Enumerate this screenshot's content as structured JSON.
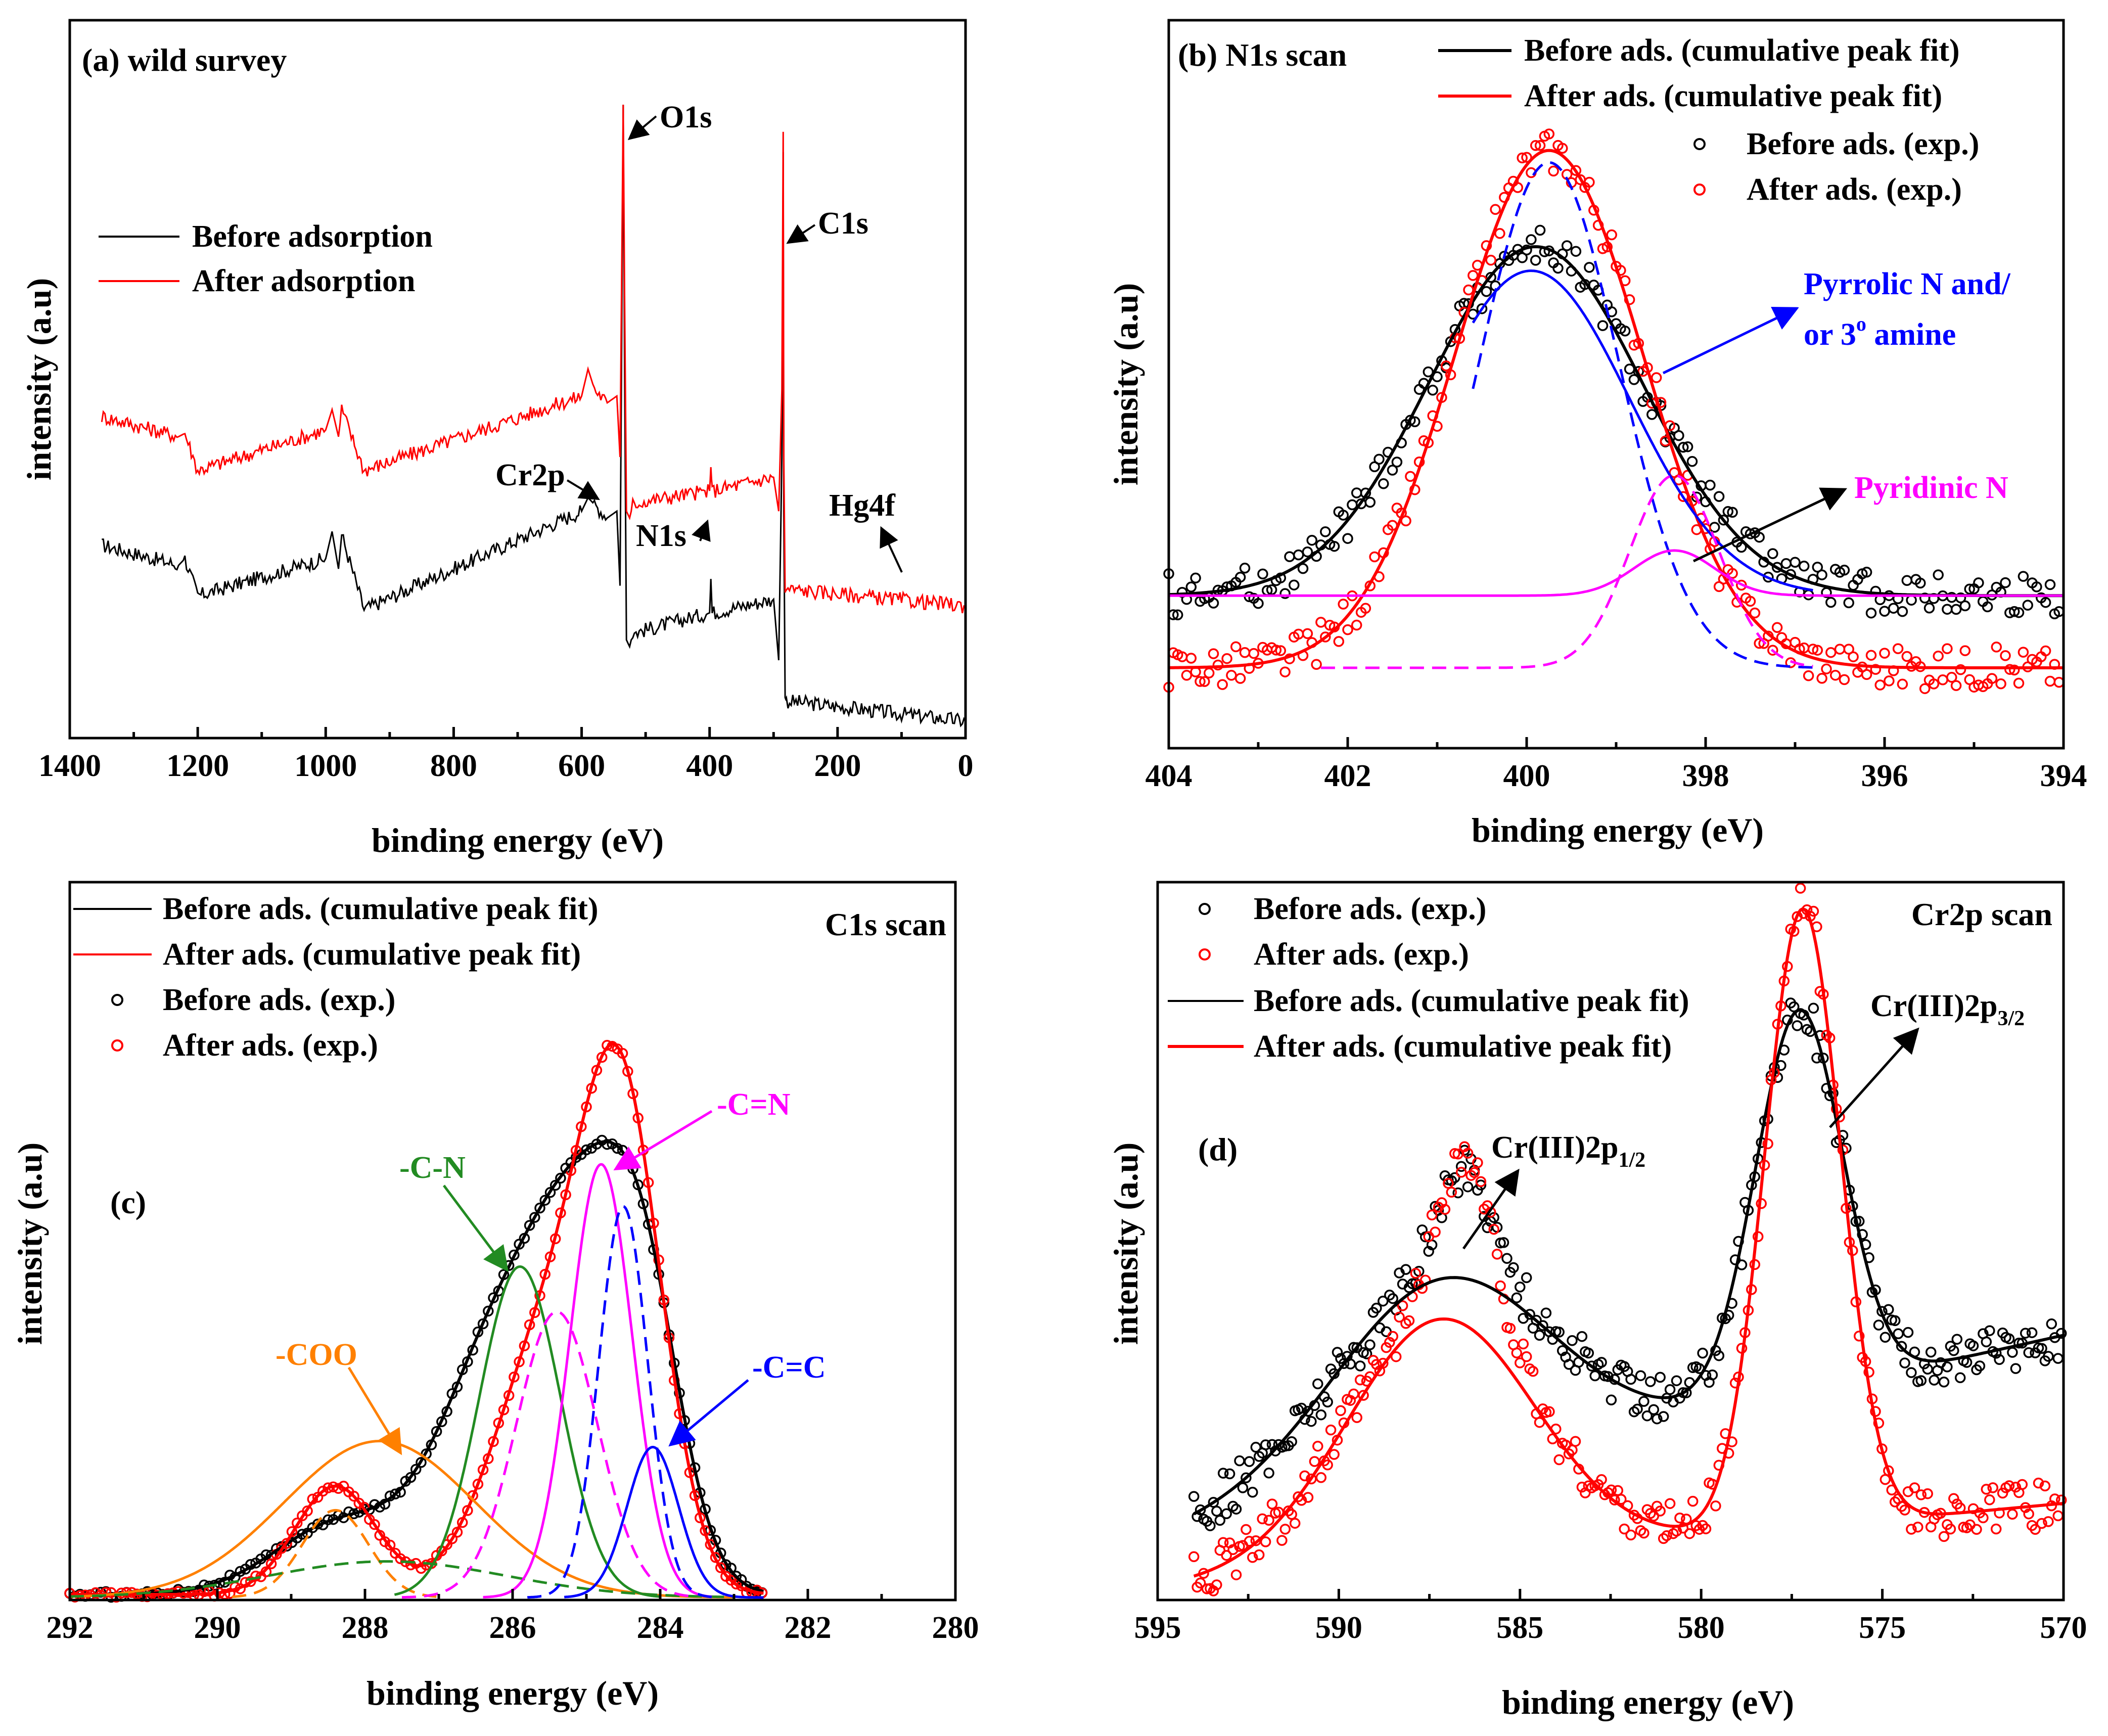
{
  "chart_data": [
    {
      "type": "line",
      "panel": "a",
      "title": "(a) wild survey",
      "xlabel": "binding energy (eV)",
      "ylabel": "intensity (a.u)",
      "xlim": [
        1400,
        0
      ],
      "xticks": [
        1400,
        1200,
        1000,
        800,
        600,
        400,
        200,
        0
      ],
      "ylim": [
        0,
        10
      ],
      "legend": [
        {
          "label": "Before adsorption",
          "color": "#000000"
        },
        {
          "label": "After adsorption",
          "color": "#ff0000"
        }
      ],
      "series": [
        {
          "name": "Before adsorption",
          "color": "#000000",
          "noise": 0.22,
          "x": [
            1350,
            1230,
            1220,
            1200,
            1000,
            990,
            980,
            975,
            940,
            600,
            590,
            580,
            560,
            545,
            540,
            535,
            533,
            530,
            525,
            520,
            500,
            400,
            398,
            396,
            300,
            292,
            287,
            285,
            284,
            282,
            280,
            0
          ],
          "y": [
            2.7,
            2.4,
            2.5,
            1.95,
            2.5,
            2.9,
            2.35,
            2.85,
            1.75,
            3.2,
            3.4,
            3.3,
            3.1,
            3.2,
            2.1,
            9.2,
            5.5,
            1.3,
            1.2,
            1.4,
            1.45,
            1.7,
            2.2,
            1.7,
            1.9,
            1.0,
            4.0,
            8.5,
            3.2,
            0.45,
            0.4,
            0.1
          ]
        },
        {
          "name": "After adsorption",
          "color": "#ff0000",
          "noise": 0.22,
          "x": [
            1350,
            1230,
            1220,
            1200,
            1000,
            990,
            980,
            975,
            940,
            600,
            590,
            580,
            560,
            545,
            540,
            535,
            533,
            530,
            525,
            520,
            500,
            400,
            398,
            396,
            300,
            292,
            287,
            285,
            284,
            282,
            280,
            0
          ],
          "y": [
            4.6,
            4.3,
            4.35,
            3.8,
            4.4,
            4.7,
            4.3,
            4.7,
            3.8,
            4.9,
            5.3,
            5.0,
            4.8,
            4.9,
            4.0,
            9.2,
            6.5,
            3.2,
            3.1,
            3.3,
            3.35,
            3.5,
            3.85,
            3.5,
            3.7,
            3.2,
            5.0,
            8.8,
            4.0,
            2.0,
            2.05,
            1.8
          ]
        }
      ],
      "annotations": [
        "O1s",
        "C1s",
        "Cr2p",
        "N1s",
        "Hg4f"
      ]
    },
    {
      "type": "line",
      "panel": "b",
      "title": "(b) N1s scan",
      "xlabel": "binding energy (eV)",
      "ylabel": "intensity (a.u)",
      "xlim": [
        404,
        394
      ],
      "xticks": [
        404,
        402,
        400,
        398,
        396,
        394
      ],
      "ylim": [
        0,
        10
      ],
      "legend": [
        {
          "label": "Before ads. (cumulative peak fit)",
          "style": "line",
          "color": "#000000"
        },
        {
          "label": "After ads. (cumulative peak fit)",
          "style": "line",
          "color": "#ff0000"
        },
        {
          "label": "Before ads. (exp.)",
          "style": "circle",
          "color": "#000000"
        },
        {
          "label": "After ads. (exp.)",
          "style": "circle",
          "color": "#ff0000"
        }
      ],
      "series": [
        {
          "name": "Before ads. (cumulative peak fit)",
          "style": "solid",
          "color": "#000000",
          "baseline": 2.2,
          "peaks": [
            [
              399.9,
              5.8,
              1.2
            ]
          ]
        },
        {
          "name": "After ads. (cumulative peak fit)",
          "style": "solid",
          "color": "#ff0000",
          "baseline": 1.0,
          "peaks": [
            [
              399.75,
              8.6,
              1.05
            ]
          ]
        },
        {
          "name": "Pyrrolic N component (before)",
          "style": "solid",
          "color": "#0000ff",
          "baseline": 2.2,
          "peaks": [
            [
              399.95,
              5.4,
              1.1
            ]
          ],
          "xrange": [
            400.6,
            396.8
          ]
        },
        {
          "name": "Pyrrolic N component (after)",
          "style": "dashed",
          "color": "#0000ff",
          "baseline": 1.0,
          "peaks": [
            [
              399.75,
              8.4,
              0.78
            ]
          ],
          "xrange": [
            400.6,
            396.8
          ]
        },
        {
          "name": "Pyridinic N component (before)",
          "style": "solid",
          "color": "#ff00ff",
          "baseline": 2.2,
          "peaks": [
            [
              398.35,
              0.75,
              0.45
            ]
          ],
          "xrange": [
            404,
            394
          ]
        },
        {
          "name": "Pyridinic N component (after)",
          "style": "dashed",
          "color": "#ff00ff",
          "baseline": 1.0,
          "peaks": [
            [
              398.35,
              3.2,
              0.5
            ]
          ],
          "xrange": [
            402.3,
            396.8
          ]
        },
        {
          "name": "Before ads. (exp.)",
          "style": "points",
          "color": "#000000",
          "of": 0,
          "noise": 0.35,
          "step": 0.05
        },
        {
          "name": "After ads. (exp.)",
          "style": "points",
          "color": "#ff0000",
          "of": 1,
          "noise": 0.35,
          "step": 0.05
        }
      ],
      "annotations": [
        "Pyrrolic N and/",
        "or 3",
        "o",
        " amine",
        "Pyridinic N"
      ]
    },
    {
      "type": "line",
      "panel": "c",
      "title": "C1s scan",
      "xlabel": "binding energy (eV)",
      "ylabel": "intensity (a.u)",
      "xlim": [
        292,
        280
      ],
      "xticks": [
        292,
        290,
        288,
        286,
        284,
        282,
        280
      ],
      "ylim": [
        0,
        10
      ],
      "legend": [
        {
          "label": "Before ads. (cumulative peak fit)",
          "style": "line",
          "color": "#000000"
        },
        {
          "label": "After ads. (cumulative peak fit)",
          "style": "line",
          "color": "#ff0000"
        },
        {
          "label": "Before ads. (exp.)",
          "style": "circle",
          "color": "#000000"
        },
        {
          "label": "After ads. (exp.)",
          "style": "circle",
          "color": "#ff0000"
        }
      ],
      "series": [
        {
          "name": "Before ads. (cumulative peak fit)",
          "style": "solid",
          "color": "#000000",
          "baseline": 0.05,
          "peaks": [
            [
              288.3,
              1.2,
              0.9
            ],
            [
              286.3,
              3.4,
              0.75
            ],
            [
              285.0,
              5.8,
              0.75
            ],
            [
              284.2,
              3.0,
              0.5
            ]
          ],
          "xrange": [
            292,
            282.6
          ]
        },
        {
          "name": "After ads. (cumulative peak fit)",
          "style": "solid",
          "color": "#ff0000",
          "baseline": 0.05,
          "peaks": [
            [
              288.4,
              1.8,
              0.55
            ],
            [
              285.5,
              4.2,
              0.75
            ],
            [
              284.5,
              7.2,
              0.55
            ]
          ],
          "xrange": [
            292,
            282.6
          ]
        },
        {
          "name": "-COO (before)",
          "style": "solid",
          "color": "#ff8000",
          "baseline": 0.0,
          "peaks": [
            [
              287.8,
              2.6,
              1.3
            ]
          ],
          "xrange": [
            292,
            283
          ]
        },
        {
          "name": "-COO (after)",
          "style": "dashed",
          "color": "#ff8000",
          "baseline": 0.0,
          "peaks": [
            [
              288.4,
              1.45,
              0.45
            ]
          ],
          "xrange": [
            289.8,
            287.0
          ]
        },
        {
          "name": "broad (after)",
          "style": "dashed",
          "color": "#228b22",
          "baseline": 0.0,
          "peaks": [
            [
              287.7,
              0.6,
              1.6
            ]
          ],
          "xrange": [
            292,
            283
          ]
        },
        {
          "name": "-C-N (before)",
          "style": "solid",
          "color": "#228b22",
          "baseline": 0.0,
          "peaks": [
            [
              285.9,
              5.5,
              0.55
            ]
          ],
          "xrange": [
            287.6,
            284.0
          ]
        },
        {
          "name": "-C-N (after)",
          "style": "dashed",
          "color": "#ff00ff",
          "baseline": 0.0,
          "peaks": [
            [
              285.4,
              4.75,
              0.55
            ]
          ],
          "xrange": [
            287.5,
            283.6
          ]
        },
        {
          "name": "-C=N (before)",
          "style": "solid",
          "color": "#ff00ff",
          "baseline": 0.0,
          "peaks": [
            [
              284.8,
              7.2,
              0.42
            ]
          ],
          "xrange": [
            286.4,
            283.3
          ]
        },
        {
          "name": "-C=N (after)",
          "style": "dashed",
          "color": "#0000ff",
          "baseline": 0.0,
          "peaks": [
            [
              284.5,
              6.5,
              0.33
            ]
          ],
          "xrange": [
            285.8,
            283.2
          ]
        },
        {
          "name": "-C=C (before)",
          "style": "solid",
          "color": "#0000ff",
          "baseline": 0.0,
          "peaks": [
            [
              284.1,
              2.5,
              0.35
            ]
          ],
          "xrange": [
            285.3,
            282.6
          ]
        },
        {
          "name": "Before ads. (exp.)",
          "style": "points",
          "color": "#000000",
          "of": 0,
          "noise": 0.05,
          "step": 0.07
        },
        {
          "name": "After ads. (exp.)",
          "style": "points",
          "color": "#ff0000",
          "of": 1,
          "noise": 0.05,
          "step": 0.07
        }
      ],
      "annotations": [
        "-COO",
        "-C-N",
        "-C=N",
        "-C=C",
        "(c)"
      ]
    },
    {
      "type": "line",
      "panel": "d",
      "title": "Cr2p scan",
      "xlabel": "binding energy (eV)",
      "ylabel": "intensity (a.u)",
      "xlim": [
        595,
        570
      ],
      "xticks": [
        595,
        590,
        585,
        580,
        575,
        570
      ],
      "ylim": [
        0,
        10
      ],
      "legend": [
        {
          "label": "Before ads. (exp.)",
          "style": "circle",
          "color": "#000000"
        },
        {
          "label": "After ads. (exp.)",
          "style": "circle",
          "color": "#ff0000"
        },
        {
          "label": "Before ads. (cumulative peak fit)",
          "style": "line",
          "color": "#000000"
        },
        {
          "label": "After ads. (cumulative peak fit)",
          "style": "line",
          "color": "#ff0000"
        }
      ],
      "series": [
        {
          "name": "Before ads. (cumulative peak fit)",
          "style": "solid",
          "color": "#000000",
          "baseline": 1.5,
          "slope": -0.12,
          "peaks": [
            [
              587.2,
              2.9,
              3.0
            ],
            [
              577.3,
              5.7,
              1.2
            ]
          ],
          "xrange": [
            594,
            570
          ]
        },
        {
          "name": "After ads. (cumulative peak fit)",
          "style": "solid",
          "color": "#ff0000",
          "baseline": 0.4,
          "slope": -0.05,
          "peaks": [
            [
              587.2,
              3.6,
              2.6
            ],
            [
              577.2,
              9.2,
              1.05
            ]
          ],
          "xrange": [
            594,
            570
          ]
        },
        {
          "name": "Before ads. (exp.)",
          "style": "points",
          "color": "#000000",
          "of": 0,
          "noise": 0.35,
          "step": 0.09,
          "extra": [
            [
              586.5,
              1.6,
              0.8
            ]
          ],
          "xrange": [
            594,
            570
          ]
        },
        {
          "name": "After ads. (exp.)",
          "style": "points",
          "color": "#ff0000",
          "of": 1,
          "noise": 0.35,
          "step": 0.09,
          "extra": [
            [
              586.5,
              2.5,
              0.8
            ]
          ],
          "xrange": [
            594,
            570
          ]
        }
      ],
      "annotations": [
        "(d)",
        "Cr(III)2p",
        "1/2",
        "Cr(III)2p",
        "3/2"
      ]
    }
  ],
  "labels": {
    "a": {
      "o1s": "O1s",
      "c1s": "C1s",
      "cr2p": "Cr2p",
      "n1s": "N1s",
      "hg4f": "Hg4f"
    },
    "b": {
      "pyrrolic_line1": "Pyrrolic N and/",
      "pyrrolic_line2a": "or 3",
      "pyrrolic_sup": "o",
      "pyrrolic_line2b": " amine",
      "pyridinic": "Pyridinic N"
    },
    "c": {
      "coo": "-COO",
      "cn": "-C-N",
      "cdn": "-C=N",
      "cdc": "-C=C",
      "panel": "(c)"
    },
    "d": {
      "panel": "(d)",
      "cr12": "Cr(III)2p",
      "cr12_sub": "1/2",
      "cr32": "Cr(III)2p",
      "cr32_sub": "3/2"
    }
  },
  "colors": {
    "black": "#000000",
    "red": "#ff0000",
    "blue": "#0000ff",
    "magenta": "#ff00ff",
    "green": "#228b22",
    "orange": "#ff8000"
  }
}
